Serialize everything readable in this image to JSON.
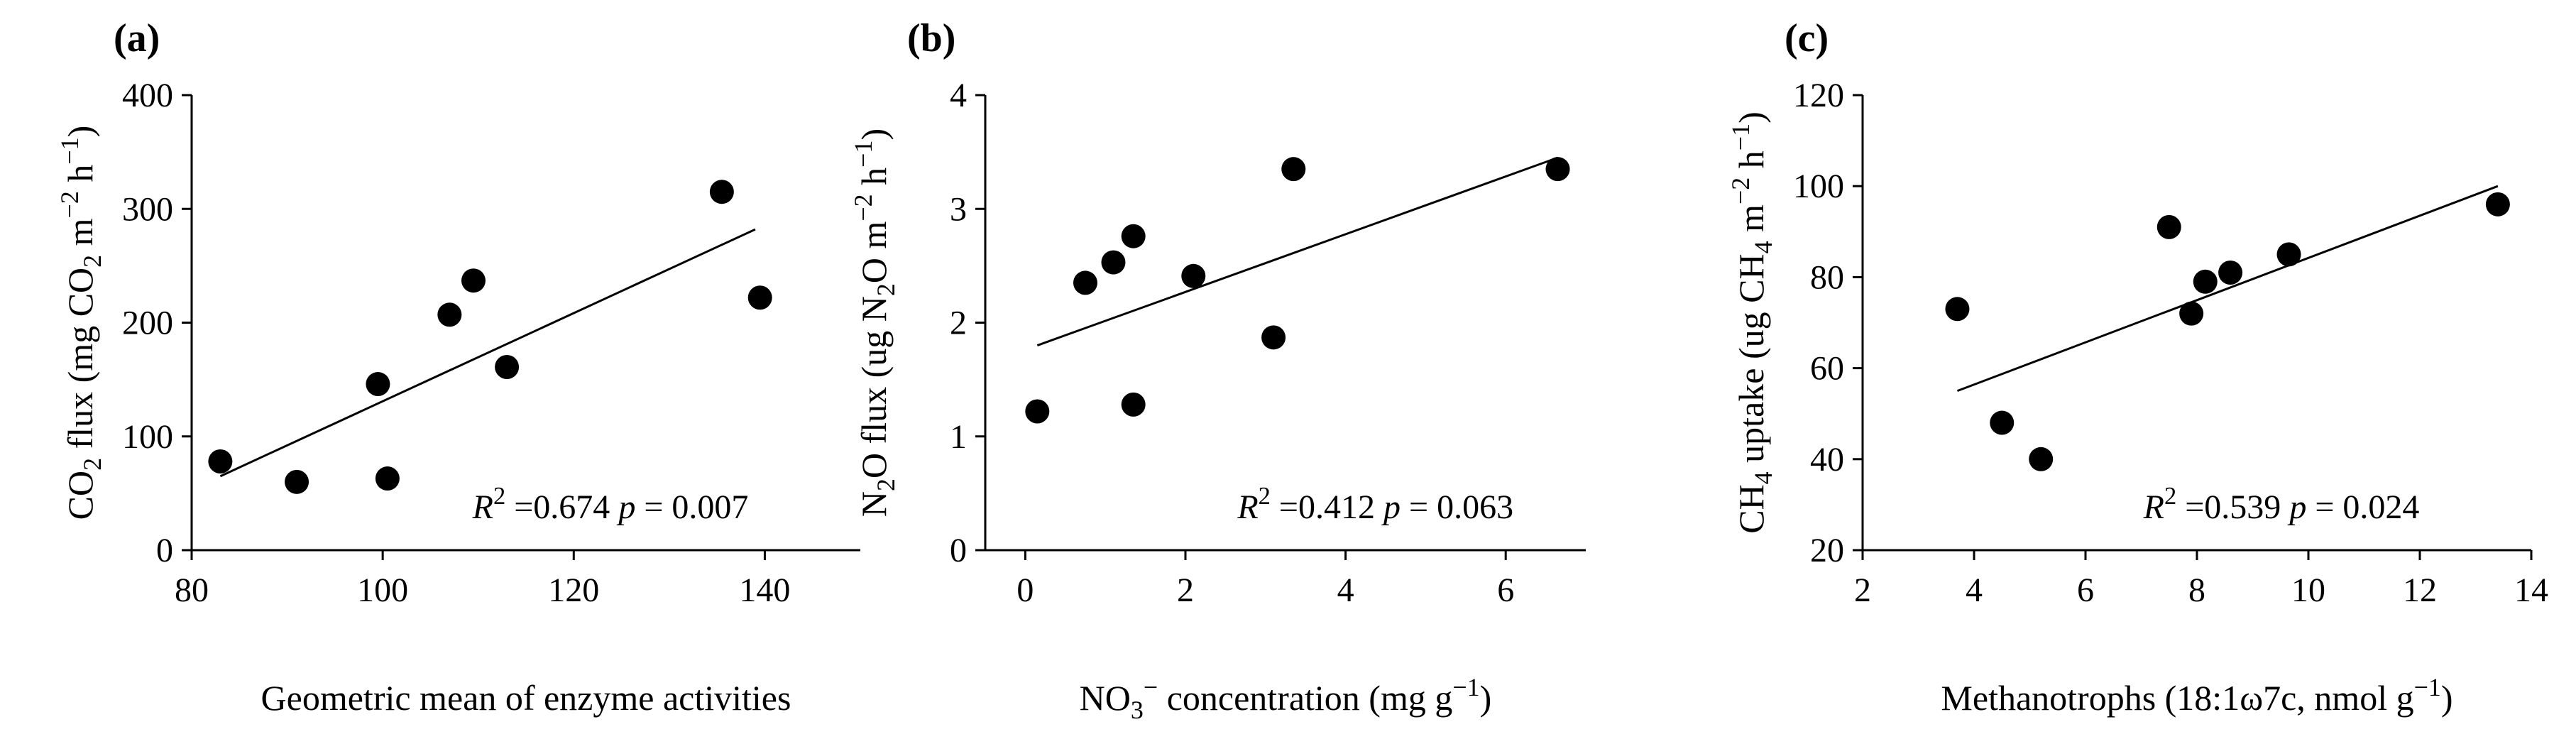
{
  "chart_data": [
    {
      "type": "scatter",
      "panel_label": "(a)",
      "xlabel": "Geometric mean of enzyme activities",
      "ylabel": {
        "pre": "CO",
        "sub1": "2",
        "mid": " flux (mg CO",
        "sub2": "2",
        "unit": " m",
        "sup1": "−2",
        "unit2": " h",
        "sup2": "−1",
        "post": ")"
      },
      "xlim": [
        80,
        150
      ],
      "ylim": [
        0,
        400
      ],
      "xticks": [
        80,
        100,
        120,
        140
      ],
      "yticks": [
        0,
        100,
        200,
        300,
        400
      ],
      "x": [
        83,
        91,
        99.5,
        100.5,
        107,
        109.5,
        113,
        135.5,
        139.5
      ],
      "y": [
        78,
        60,
        146,
        63,
        207,
        237,
        161,
        315,
        222
      ],
      "trendline": {
        "x": [
          83,
          139
        ],
        "y": [
          65,
          282
        ]
      },
      "stat": {
        "r_label": "R",
        "r_sup": "2",
        "r_value": " =0.674",
        "p_label": "p",
        "p_value": " = 0.007"
      }
    },
    {
      "type": "scatter",
      "panel_label": "(b)",
      "xlabel": {
        "pre": "NO",
        "sub": "3",
        "sup": "−",
        "post": " concentration (mg g",
        "sup2": "−1",
        "end": ")"
      },
      "ylabel": {
        "pre": "N",
        "sub1": "2",
        "mid": "O flux (ug N",
        "sub2": "2",
        "unit": "O m",
        "sup1": "−2",
        "unit2": " h",
        "sup2": "−1",
        "post": ")"
      },
      "xlim": [
        -0.5,
        7
      ],
      "ylim": [
        0,
        4
      ],
      "xticks": [
        0,
        2,
        4,
        6
      ],
      "yticks": [
        0,
        1,
        2,
        3,
        4
      ],
      "x": [
        0.15,
        0.75,
        1.1,
        1.35,
        1.35,
        2.1,
        3.1,
        3.35,
        6.65
      ],
      "y": [
        1.22,
        2.35,
        2.53,
        2.76,
        1.28,
        2.41,
        1.87,
        3.35,
        3.35
      ],
      "trendline": {
        "x": [
          0.15,
          6.65
        ],
        "y": [
          1.8,
          3.45
        ]
      },
      "stat": {
        "r_label": "R",
        "r_sup": "2",
        "r_value": " =0.412",
        "p_label": "p",
        "p_value": " = 0.063"
      }
    },
    {
      "type": "scatter",
      "panel_label": "(c)",
      "xlabel": {
        "pre": "Methanotrophs (18:1ω7c, nmol g",
        "sup": "−1",
        "post": ")"
      },
      "ylabel": {
        "pre": "CH",
        "sub1": "4",
        "mid": " uptake (ug CH",
        "sub2": "4",
        "unit": " m",
        "sup1": "−2",
        "unit2": " h",
        "sup2": "−1",
        "post": ")"
      },
      "xlim": [
        2,
        14
      ],
      "ylim": [
        20,
        120
      ],
      "xticks": [
        2,
        4,
        6,
        8,
        10,
        12,
        14
      ],
      "yticks": [
        20,
        40,
        60,
        80,
        100,
        120
      ],
      "x": [
        3.7,
        4.5,
        5.2,
        7.5,
        7.9,
        8.15,
        8.6,
        9.65,
        13.4
      ],
      "y": [
        73,
        48,
        40,
        91,
        72,
        79,
        81,
        85,
        96
      ],
      "trendline": {
        "x": [
          3.7,
          13.4
        ],
        "y": [
          55,
          100
        ]
      },
      "stat": {
        "r_label": "R",
        "r_sup": "2",
        "r_value": " =0.539",
        "p_label": "p",
        "p_value": " = 0.024"
      }
    }
  ]
}
